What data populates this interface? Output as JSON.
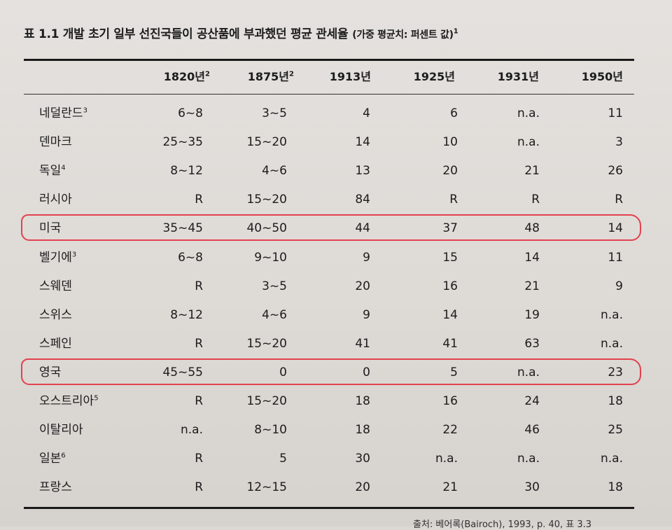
{
  "title": {
    "main": "표 1.1 개발 초기 일부 선진국들이 공산품에 부과했던 평균 관세율",
    "sub": "(가중 평균치: 퍼센트 값)",
    "sup": "1"
  },
  "columns": [
    {
      "label": "1820년",
      "sup": "2"
    },
    {
      "label": "1875년",
      "sup": "2"
    },
    {
      "label": "1913년",
      "sup": ""
    },
    {
      "label": "1925년",
      "sup": ""
    },
    {
      "label": "1931년",
      "sup": ""
    },
    {
      "label": "1950년",
      "sup": ""
    }
  ],
  "rows": [
    {
      "country": "네덜란드",
      "sup": "3",
      "values": [
        "6~8",
        "3~5",
        "4",
        "6",
        "n.a.",
        "11"
      ],
      "highlight": false
    },
    {
      "country": "덴마크",
      "sup": "",
      "values": [
        "25~35",
        "15~20",
        "14",
        "10",
        "n.a.",
        "3"
      ],
      "highlight": false
    },
    {
      "country": "독일",
      "sup": "4",
      "values": [
        "8~12",
        "4~6",
        "13",
        "20",
        "21",
        "26"
      ],
      "highlight": false
    },
    {
      "country": "러시아",
      "sup": "",
      "values": [
        "R",
        "15~20",
        "84",
        "R",
        "R",
        "R"
      ],
      "highlight": false
    },
    {
      "country": "미국",
      "sup": "",
      "values": [
        "35~45",
        "40~50",
        "44",
        "37",
        "48",
        "14"
      ],
      "highlight": true
    },
    {
      "country": "벨기에",
      "sup": "3",
      "values": [
        "6~8",
        "9~10",
        "9",
        "15",
        "14",
        "11"
      ],
      "highlight": false
    },
    {
      "country": "스웨덴",
      "sup": "",
      "values": [
        "R",
        "3~5",
        "20",
        "16",
        "21",
        "9"
      ],
      "highlight": false
    },
    {
      "country": "스위스",
      "sup": "",
      "values": [
        "8~12",
        "4~6",
        "9",
        "14",
        "19",
        "n.a."
      ],
      "highlight": false
    },
    {
      "country": "스페인",
      "sup": "",
      "values": [
        "R",
        "15~20",
        "41",
        "41",
        "63",
        "n.a."
      ],
      "highlight": false
    },
    {
      "country": "영국",
      "sup": "",
      "values": [
        "45~55",
        "0",
        "0",
        "5",
        "n.a.",
        "23"
      ],
      "highlight": true
    },
    {
      "country": "오스트리아",
      "sup": "5",
      "values": [
        "R",
        "15~20",
        "18",
        "16",
        "24",
        "18"
      ],
      "highlight": false
    },
    {
      "country": "이탈리아",
      "sup": "",
      "values": [
        "n.a.",
        "8~10",
        "18",
        "22",
        "46",
        "25"
      ],
      "highlight": false
    },
    {
      "country": "일본",
      "sup": "6",
      "values": [
        "R",
        "5",
        "30",
        "n.a.",
        "n.a.",
        "n.a."
      ],
      "highlight": false
    },
    {
      "country": "프랑스",
      "sup": "",
      "values": [
        "R",
        "12~15",
        "20",
        "21",
        "30",
        "18"
      ],
      "highlight": false
    }
  ],
  "footer": "출처: 베어록(Bairoch), 1993, p. 40, 표 3.3",
  "colors": {
    "highlight": "#e2424f"
  }
}
